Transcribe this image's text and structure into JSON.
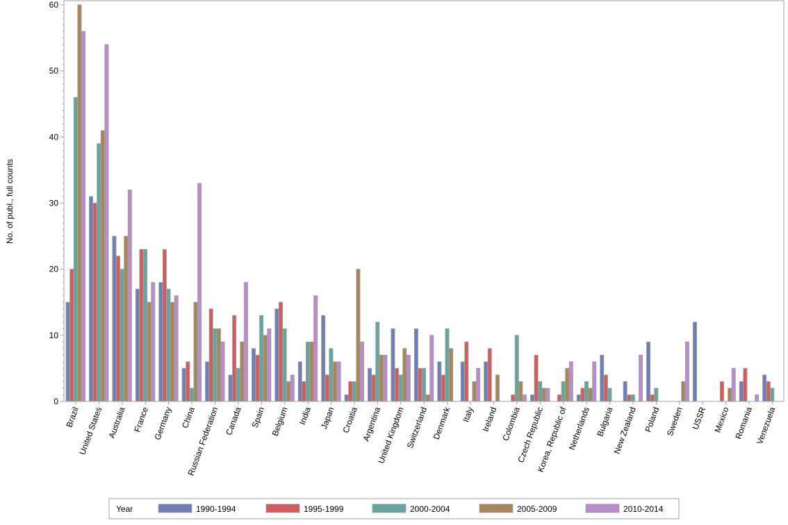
{
  "chart_data": {
    "type": "bar",
    "title": "",
    "xlabel": "",
    "ylabel": "No. of publ., full counts",
    "ylim": [
      0,
      60
    ],
    "yticks": [
      0,
      10,
      20,
      30,
      40,
      50,
      60
    ],
    "grid": false,
    "legend_title": "Year",
    "legend_position": "bottom",
    "categories": [
      "Brazil",
      "United States",
      "Australia",
      "France",
      "Germany",
      "China",
      "Russian Federation",
      "Canada",
      "Spain",
      "Belgium",
      "India",
      "Japan",
      "Croatia",
      "Argentina",
      "United Kingdom",
      "Switzerland",
      "Denmark",
      "Italy",
      "Ireland",
      "Colombia",
      "Czech Republic",
      "Korea, Republic of",
      "Netherlands",
      "Bulgaria",
      "New Zealand",
      "Poland",
      "Sweden",
      "USSR",
      "Mexico",
      "Romania",
      "Venezuela"
    ],
    "series": [
      {
        "name": "1990-1994",
        "color": "#6f7fb5",
        "values": [
          15,
          31,
          25,
          17,
          18,
          5,
          6,
          4,
          8,
          14,
          6,
          13,
          1,
          5,
          11,
          11,
          6,
          6,
          6,
          0,
          1,
          0,
          1,
          7,
          3,
          9,
          0,
          12,
          0,
          3,
          4
        ]
      },
      {
        "name": "1995-1999",
        "color": "#d35b5b",
        "values": [
          20,
          30,
          22,
          23,
          23,
          6,
          14,
          13,
          7,
          15,
          3,
          4,
          3,
          4,
          5,
          5,
          4,
          9,
          8,
          1,
          7,
          1,
          2,
          4,
          1,
          1,
          0,
          0,
          3,
          5,
          3
        ]
      },
      {
        "name": "2000-2004",
        "color": "#66a59d",
        "values": [
          46,
          39,
          20,
          23,
          17,
          2,
          11,
          5,
          13,
          11,
          9,
          8,
          3,
          12,
          4,
          5,
          11,
          0,
          0,
          10,
          3,
          3,
          3,
          2,
          1,
          2,
          0,
          0,
          0,
          0,
          2
        ]
      },
      {
        "name": "2005-2009",
        "color": "#a8865a",
        "values": [
          60,
          41,
          25,
          15,
          15,
          15,
          11,
          9,
          10,
          3,
          9,
          6,
          20,
          7,
          8,
          1,
          8,
          3,
          4,
          3,
          2,
          5,
          2,
          0,
          0,
          0,
          3,
          0,
          2,
          0,
          0
        ]
      },
      {
        "name": "2010-2014",
        "color": "#b98ccb",
        "values": [
          56,
          54,
          32,
          18,
          16,
          33,
          9,
          18,
          11,
          4,
          16,
          6,
          9,
          7,
          7,
          10,
          0,
          5,
          0,
          1,
          2,
          6,
          6,
          0,
          7,
          0,
          9,
          0,
          5,
          1,
          0
        ]
      }
    ]
  }
}
